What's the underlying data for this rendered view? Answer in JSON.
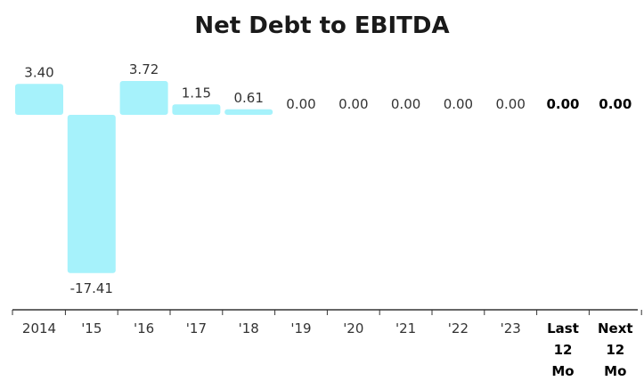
{
  "title": "Net Debt to EBITDA",
  "colors": {
    "bar": "#a6f2fb",
    "axis": "#333333",
    "text": "#333333",
    "bold_text": "#000000"
  },
  "chart_data": {
    "type": "bar",
    "title": "Net Debt to EBITDA",
    "xlabel": "",
    "ylabel": "",
    "categories": [
      "2014",
      "'15",
      "'16",
      "'17",
      "'18",
      "'19",
      "'20",
      "'21",
      "'22",
      "'23",
      "Last 12 Mo",
      "Next 12 Mo"
    ],
    "values": [
      3.4,
      -17.41,
      3.72,
      1.15,
      0.61,
      0.0,
      0.0,
      0.0,
      0.0,
      0.0,
      0.0,
      0.0
    ],
    "value_labels": [
      "3.40",
      "-17.41",
      "3.72",
      "1.15",
      "0.61",
      "0.00",
      "0.00",
      "0.00",
      "0.00",
      "0.00",
      "0.00",
      "0.00"
    ],
    "highlighted": [
      false,
      false,
      false,
      false,
      false,
      false,
      false,
      false,
      false,
      false,
      true,
      true
    ],
    "ylim": [
      -17.41,
      3.72
    ],
    "grid": false,
    "legend": "none"
  }
}
